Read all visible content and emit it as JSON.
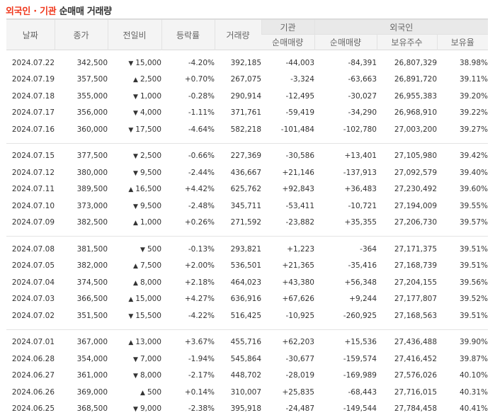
{
  "title": {
    "highlight": "외국인 · 기관",
    "rest": "순매매 거래량"
  },
  "header": {
    "date": "날짜",
    "close": "종가",
    "change": "전일비",
    "rate": "등락률",
    "volume": "거래량",
    "institution": "기관",
    "foreign": "외국인",
    "inst_net": "순매매량",
    "foreign_net": "순매매량",
    "foreign_holding": "보유주수",
    "foreign_ratio": "보유율"
  },
  "colors": {
    "up": "#d80c18",
    "down": "#1a5fd3",
    "title_accent": "#f0391e"
  },
  "groups": [
    {
      "rows": [
        {
          "date": "2024.07.22",
          "close": "342,500",
          "dir": "down",
          "change": "15,000",
          "rate": "-4.20%",
          "volume": "392,185",
          "inst": "-44,003",
          "fnet": "-84,391",
          "fhold": "26,807,329",
          "fratio": "38.98%"
        },
        {
          "date": "2024.07.19",
          "close": "357,500",
          "dir": "up",
          "change": "2,500",
          "rate": "+0.70%",
          "volume": "267,075",
          "inst": "-3,324",
          "fnet": "-63,663",
          "fhold": "26,891,720",
          "fratio": "39.11%"
        },
        {
          "date": "2024.07.18",
          "close": "355,000",
          "dir": "down",
          "change": "1,000",
          "rate": "-0.28%",
          "volume": "290,914",
          "inst": "-12,495",
          "fnet": "-30,027",
          "fhold": "26,955,383",
          "fratio": "39.20%"
        },
        {
          "date": "2024.07.17",
          "close": "356,000",
          "dir": "down",
          "change": "4,000",
          "rate": "-1.11%",
          "volume": "371,761",
          "inst": "-59,419",
          "fnet": "-34,290",
          "fhold": "26,968,910",
          "fratio": "39.22%"
        },
        {
          "date": "2024.07.16",
          "close": "360,000",
          "dir": "down",
          "change": "17,500",
          "rate": "-4.64%",
          "volume": "582,218",
          "inst": "-101,484",
          "fnet": "-102,780",
          "fhold": "27,003,200",
          "fratio": "39.27%"
        }
      ]
    },
    {
      "rows": [
        {
          "date": "2024.07.15",
          "close": "377,500",
          "dir": "down",
          "change": "2,500",
          "rate": "-0.66%",
          "volume": "227,369",
          "inst": "-30,586",
          "fnet": "+13,401",
          "fhold": "27,105,980",
          "fratio": "39.42%"
        },
        {
          "date": "2024.07.12",
          "close": "380,000",
          "dir": "down",
          "change": "9,500",
          "rate": "-2.44%",
          "volume": "436,667",
          "inst": "+21,146",
          "fnet": "-137,913",
          "fhold": "27,092,579",
          "fratio": "39.40%"
        },
        {
          "date": "2024.07.11",
          "close": "389,500",
          "dir": "up",
          "change": "16,500",
          "rate": "+4.42%",
          "volume": "625,762",
          "inst": "+92,843",
          "fnet": "+36,483",
          "fhold": "27,230,492",
          "fratio": "39.60%"
        },
        {
          "date": "2024.07.10",
          "close": "373,000",
          "dir": "down",
          "change": "9,500",
          "rate": "-2.48%",
          "volume": "345,711",
          "inst": "-53,411",
          "fnet": "-10,721",
          "fhold": "27,194,009",
          "fratio": "39.55%"
        },
        {
          "date": "2024.07.09",
          "close": "382,500",
          "dir": "up",
          "change": "1,000",
          "rate": "+0.26%",
          "volume": "271,592",
          "inst": "-23,882",
          "fnet": "+35,355",
          "fhold": "27,206,730",
          "fratio": "39.57%"
        }
      ]
    },
    {
      "rows": [
        {
          "date": "2024.07.08",
          "close": "381,500",
          "dir": "down",
          "change": "500",
          "rate": "-0.13%",
          "volume": "293,821",
          "inst": "+1,223",
          "fnet": "-364",
          "fhold": "27,171,375",
          "fratio": "39.51%"
        },
        {
          "date": "2024.07.05",
          "close": "382,000",
          "dir": "up",
          "change": "7,500",
          "rate": "+2.00%",
          "volume": "536,501",
          "inst": "+21,365",
          "fnet": "-35,416",
          "fhold": "27,168,739",
          "fratio": "39.51%"
        },
        {
          "date": "2024.07.04",
          "close": "374,500",
          "dir": "up",
          "change": "8,000",
          "rate": "+2.18%",
          "volume": "464,023",
          "inst": "+43,380",
          "fnet": "+56,348",
          "fhold": "27,204,155",
          "fratio": "39.56%"
        },
        {
          "date": "2024.07.03",
          "close": "366,500",
          "dir": "up",
          "change": "15,000",
          "rate": "+4.27%",
          "volume": "636,916",
          "inst": "+67,626",
          "fnet": "+9,244",
          "fhold": "27,177,807",
          "fratio": "39.52%"
        },
        {
          "date": "2024.07.02",
          "close": "351,500",
          "dir": "down",
          "change": "15,500",
          "rate": "-4.22%",
          "volume": "516,425",
          "inst": "-10,925",
          "fnet": "-260,925",
          "fhold": "27,168,563",
          "fratio": "39.51%"
        }
      ]
    },
    {
      "rows": [
        {
          "date": "2024.07.01",
          "close": "367,000",
          "dir": "up",
          "change": "13,000",
          "rate": "+3.67%",
          "volume": "455,716",
          "inst": "+62,203",
          "fnet": "+15,536",
          "fhold": "27,436,488",
          "fratio": "39.90%"
        },
        {
          "date": "2024.06.28",
          "close": "354,000",
          "dir": "down",
          "change": "7,000",
          "rate": "-1.94%",
          "volume": "545,864",
          "inst": "-30,677",
          "fnet": "-159,574",
          "fhold": "27,416,452",
          "fratio": "39.87%"
        },
        {
          "date": "2024.06.27",
          "close": "361,000",
          "dir": "down",
          "change": "8,000",
          "rate": "-2.17%",
          "volume": "448,702",
          "inst": "-28,019",
          "fnet": "-169,989",
          "fhold": "27,576,026",
          "fratio": "40.10%"
        },
        {
          "date": "2024.06.26",
          "close": "369,000",
          "dir": "up",
          "change": "500",
          "rate": "+0.14%",
          "volume": "310,007",
          "inst": "+25,835",
          "fnet": "-68,443",
          "fhold": "27,716,015",
          "fratio": "40.31%"
        },
        {
          "date": "2024.06.25",
          "close": "368,500",
          "dir": "down",
          "change": "9,000",
          "rate": "-2.38%",
          "volume": "395,918",
          "inst": "-24,487",
          "fnet": "-149,544",
          "fhold": "27,784,458",
          "fratio": "40.41%"
        }
      ]
    }
  ],
  "icons": {
    "up": "▲",
    "down": "▼"
  }
}
